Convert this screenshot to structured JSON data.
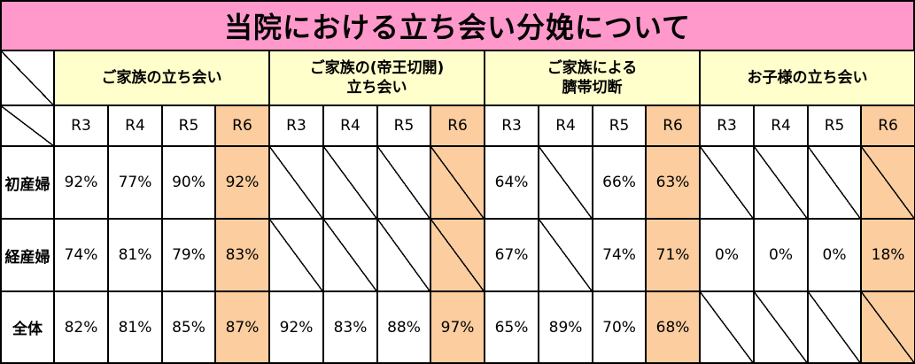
{
  "title": "当院における立ち会い分娩について",
  "groups": [
    {
      "line1": "ご家族の立ち会い",
      "line2": ""
    },
    {
      "line1": "ご家族の(帝王切開)",
      "line2": "立ち会い"
    },
    {
      "line1": "ご家族による",
      "line2": "臍帯切断"
    },
    {
      "line1": "お子様の立ち会い",
      "line2": ""
    }
  ],
  "years": [
    "R3",
    "R4",
    "R5",
    "R6"
  ],
  "rows": [
    {
      "label": "初産婦",
      "values": [
        "92%",
        "77%",
        "90%",
        "92%",
        "",
        "",
        "",
        "",
        "64%",
        "",
        "66%",
        "63%",
        "",
        "",
        "",
        ""
      ]
    },
    {
      "label": "経産婦",
      "values": [
        "74%",
        "81%",
        "79%",
        "83%",
        "",
        "",
        "",
        "",
        "67%",
        "",
        "74%",
        "71%",
        "0%",
        "0%",
        "0%",
        "18%"
      ]
    },
    {
      "label": "全体",
      "values": [
        "82%",
        "81%",
        "85%",
        "87%",
        "92%",
        "83%",
        "88%",
        "97%",
        "65%",
        "89%",
        "70%",
        "68%",
        "",
        "",
        "",
        ""
      ]
    }
  ],
  "colors": {
    "title_bg": "#ff99cc",
    "group_bg": "#ffffcc",
    "r6_bg": "#fbcd9f"
  }
}
